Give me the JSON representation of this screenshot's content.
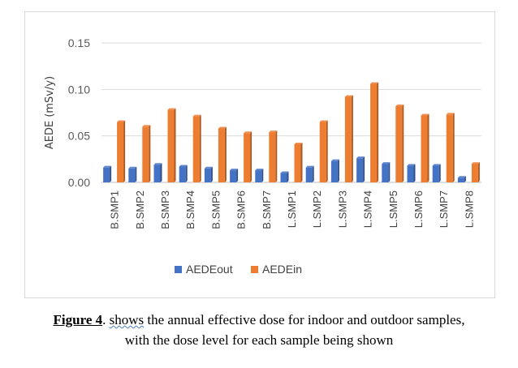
{
  "chart_data": {
    "type": "bar",
    "ylabel": "AEDE (mSv/y)",
    "ylim": [
      0,
      0.15
    ],
    "yticks": [
      "0.00",
      "0.05",
      "0.10",
      "0.15"
    ],
    "grid": true,
    "legend_position": "bottom",
    "categories": [
      "B.SMP1",
      "B.SMP2",
      "B.SMP3",
      "B.SMP4",
      "B.SMP5",
      "B.SMP6",
      "B.SMP7",
      "L.SMP1",
      "L.SMP2",
      "L.SMP3",
      "L.SMP4",
      "L.SMP5",
      "L.SMP6",
      "L.SMP7",
      "L.SMP8"
    ],
    "series": [
      {
        "name": "AEDEout",
        "color": "#4472c4",
        "values": [
          0.016,
          0.015,
          0.019,
          0.017,
          0.015,
          0.013,
          0.013,
          0.01,
          0.016,
          0.023,
          0.026,
          0.02,
          0.018,
          0.018,
          0.005
        ]
      },
      {
        "name": "AEDEin",
        "color": "#ed7d31",
        "values": [
          0.065,
          0.06,
          0.078,
          0.071,
          0.058,
          0.053,
          0.054,
          0.041,
          0.065,
          0.092,
          0.106,
          0.082,
          0.072,
          0.073,
          0.02
        ]
      }
    ]
  },
  "caption": {
    "label": "Figure 4",
    "dot": ".",
    "shows": "shows",
    "rest": " the annual effective dose for indoor and outdoor samples,",
    "line2": "with the dose level for each sample being  shown"
  }
}
